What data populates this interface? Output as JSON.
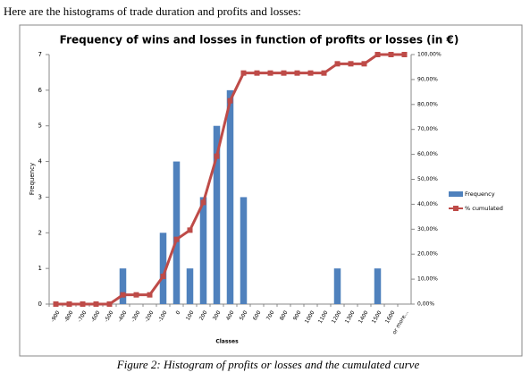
{
  "document": {
    "intro": "Here are the histograms of trade duration and profits and losses:",
    "caption": "Figure 2: Histogram of profits or losses and the cumulated curve"
  },
  "chart_data": {
    "type": "bar",
    "title": "Frequency of wins and losses in function of profits or losses (in €)",
    "xlabel": "Classes",
    "ylabel": "Frequency",
    "categories": [
      "-900",
      "-800",
      "-700",
      "-600",
      "-500",
      "-400",
      "-300",
      "-200",
      "-100",
      "0",
      "100",
      "200",
      "300",
      "400",
      "500",
      "600",
      "700",
      "800",
      "900",
      "1000",
      "1100",
      "1200",
      "1300",
      "1400",
      "1500",
      "1600",
      "or more..."
    ],
    "series": [
      {
        "name": "Frequency",
        "color": "#4f81bd",
        "type": "bar",
        "values": [
          0,
          0,
          0,
          0,
          0,
          1,
          0,
          0,
          2,
          4,
          1,
          3,
          5,
          6,
          3,
          0,
          0,
          0,
          0,
          0,
          0,
          1,
          0,
          0,
          1,
          0,
          0
        ]
      },
      {
        "name": "% cumulated",
        "color": "#be4b48",
        "type": "line",
        "axis": "y2",
        "values": [
          0,
          0,
          0,
          0,
          0,
          3.7,
          3.7,
          3.7,
          11.11,
          25.93,
          29.63,
          40.74,
          59.26,
          81.48,
          92.59,
          92.59,
          92.59,
          92.59,
          92.59,
          92.59,
          92.59,
          96.3,
          96.3,
          96.3,
          100,
          100,
          100
        ]
      }
    ],
    "ylim": [
      0,
      7
    ],
    "yticks": [
      0,
      1,
      2,
      3,
      4,
      5,
      6,
      7
    ],
    "y2lim": [
      0,
      100
    ],
    "y2ticks": [
      {
        "value": 0,
        "label": "0,00%"
      },
      {
        "value": 10,
        "label": "10,00%"
      },
      {
        "value": 20,
        "label": "20,00%"
      },
      {
        "value": 30,
        "label": "30,00%"
      },
      {
        "value": 40,
        "label": "40,00%"
      },
      {
        "value": 50,
        "label": "50,00%"
      },
      {
        "value": 60,
        "label": "60,00%"
      },
      {
        "value": 70,
        "label": "70,00%"
      },
      {
        "value": 80,
        "label": "80,00%"
      },
      {
        "value": 90,
        "label": "90,00%"
      },
      {
        "value": 100,
        "label": "100,00%"
      }
    ],
    "legend": "right"
  }
}
